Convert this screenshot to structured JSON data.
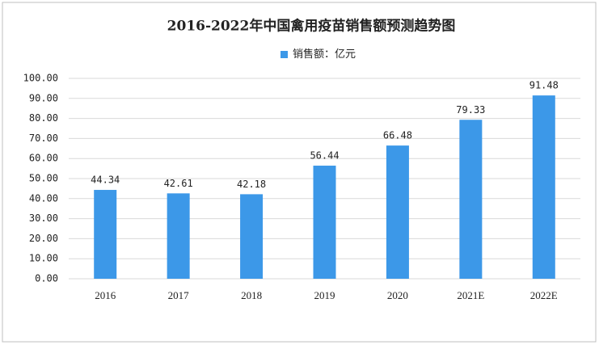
{
  "chart_data": {
    "type": "bar",
    "title": "2016-2022年中国禽用疫苗销售额预测趋势图",
    "categories": [
      "2016",
      "2017",
      "2018",
      "2019",
      "2020",
      "2021E",
      "2022E"
    ],
    "series": [
      {
        "name": "销售额：亿元",
        "color": "#3c98e8",
        "values": [
          44.34,
          42.61,
          42.18,
          56.44,
          66.48,
          79.33,
          91.48
        ]
      }
    ],
    "ylim": [
      0,
      100
    ],
    "yticks": [
      {
        "value": 0,
        "label": "0.00"
      },
      {
        "value": 10,
        "label": "10.00"
      },
      {
        "value": 20,
        "label": "20.00"
      },
      {
        "value": 30,
        "label": "30.00"
      },
      {
        "value": 40,
        "label": "40.00"
      },
      {
        "value": 50,
        "label": "50.00"
      },
      {
        "value": 60,
        "label": "60.00"
      },
      {
        "value": 70,
        "label": "70.00"
      },
      {
        "value": 80,
        "label": "80.00"
      },
      {
        "value": 90,
        "label": "90.00"
      },
      {
        "value": 100,
        "label": "100.00"
      }
    ],
    "grid": true,
    "legend": "top"
  }
}
